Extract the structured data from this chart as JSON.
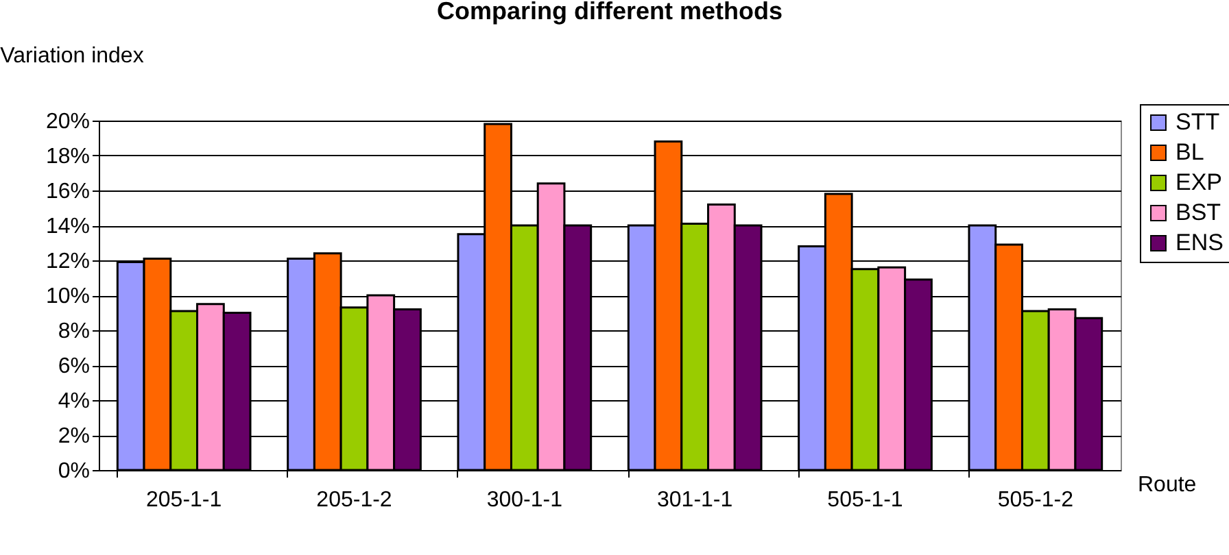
{
  "chart_data": {
    "type": "bar",
    "title": "Comparing different methods",
    "xlabel": "Route",
    "ylabel": "Variation index",
    "categories": [
      "205-1-1",
      "205-1-2",
      "300-1-1",
      "301-1-1",
      "505-1-1",
      "505-1-2"
    ],
    "series": [
      {
        "name": "STT",
        "color": "#9999ff",
        "values": [
          11.9,
          12.1,
          13.5,
          14.0,
          12.8,
          14.0
        ]
      },
      {
        "name": "BL",
        "color": "#ff6600",
        "values": [
          12.1,
          12.4,
          19.8,
          18.8,
          15.8,
          12.9
        ]
      },
      {
        "name": "EXP",
        "color": "#99cc00",
        "values": [
          9.1,
          9.3,
          14.0,
          14.1,
          11.5,
          9.1
        ]
      },
      {
        "name": "BST",
        "color": "#ff99cc",
        "values": [
          9.5,
          10.0,
          16.4,
          15.2,
          11.6,
          9.2
        ]
      },
      {
        "name": "ENS",
        "color": "#660066",
        "values": [
          9.0,
          9.2,
          14.0,
          14.0,
          10.9,
          8.7
        ]
      }
    ],
    "ylim": [
      0,
      20
    ],
    "yticks": [
      {
        "value": 0,
        "label": "0%"
      },
      {
        "value": 2,
        "label": "2%"
      },
      {
        "value": 4,
        "label": "4%"
      },
      {
        "value": 6,
        "label": "6%"
      },
      {
        "value": 8,
        "label": "8%"
      },
      {
        "value": 10,
        "label": "10%"
      },
      {
        "value": 12,
        "label": "12%"
      },
      {
        "value": 14,
        "label": "14%"
      },
      {
        "value": 16,
        "label": "16%"
      },
      {
        "value": 18,
        "label": "18%"
      },
      {
        "value": 20,
        "label": "20%"
      }
    ],
    "grid": "y",
    "legend": "top right"
  }
}
